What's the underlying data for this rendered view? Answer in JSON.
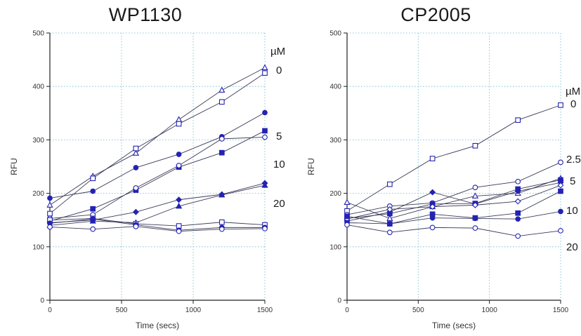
{
  "chart_data": [
    {
      "type": "line",
      "title": "WP1130",
      "xlabel": "Time (secs)",
      "ylabel": "RFU",
      "xlim": [
        0,
        1500
      ],
      "ylim": [
        0,
        500
      ],
      "xticks": [
        0,
        500,
        1000,
        1500
      ],
      "yticks": [
        0,
        100,
        200,
        300,
        400,
        500
      ],
      "grid": true,
      "x": [
        0,
        300,
        600,
        900,
        1200,
        1500
      ],
      "annotations": [
        "µM",
        "0",
        "5",
        "10",
        "20"
      ],
      "series": [
        {
          "marker": "triangle-open",
          "values": [
            178,
            232,
            275,
            338,
            393,
            435
          ]
        },
        {
          "marker": "square-open",
          "values": [
            162,
            228,
            284,
            330,
            371,
            425
          ]
        },
        {
          "marker": "circle-filled",
          "values": [
            191,
            204,
            248,
            273,
            306,
            351
          ]
        },
        {
          "marker": "square-filled",
          "values": [
            148,
            171,
            206,
            249,
            276,
            317
          ]
        },
        {
          "marker": "circle-open",
          "values": [
            153,
            160,
            210,
            252,
            302,
            305
          ]
        },
        {
          "marker": "diamond-filled",
          "values": [
            145,
            150,
            165,
            188,
            198,
            219
          ]
        },
        {
          "marker": "triangle-filled",
          "values": [
            140,
            148,
            145,
            176,
            197,
            215
          ]
        },
        {
          "marker": "square-open",
          "values": [
            150,
            153,
            143,
            139,
            146,
            141
          ]
        },
        {
          "marker": "circle-filled",
          "values": [
            144,
            152,
            141,
            131,
            136,
            136
          ]
        },
        {
          "marker": "circle-open",
          "values": [
            137,
            133,
            138,
            129,
            133,
            134
          ]
        }
      ]
    },
    {
      "type": "line",
      "title": "CP2005",
      "xlabel": "Time (secs)",
      "ylabel": "RFU",
      "xlim": [
        0,
        1500
      ],
      "ylim": [
        0,
        500
      ],
      "xticks": [
        0,
        500,
        1000,
        1500
      ],
      "yticks": [
        0,
        100,
        200,
        300,
        400,
        500
      ],
      "grid": true,
      "x": [
        0,
        300,
        600,
        900,
        1200,
        1500
      ],
      "annotations": [
        "µM",
        "0",
        "2.5",
        "5",
        "10",
        "20"
      ],
      "series": [
        {
          "marker": "square-open",
          "values": [
            167,
            217,
            265,
            289,
            337,
            365
          ]
        },
        {
          "marker": "circle-open",
          "values": [
            160,
            176,
            182,
            211,
            222,
            258
          ]
        },
        {
          "marker": "triangle-open",
          "values": [
            183,
            153,
            175,
            195,
            200,
            228
          ]
        },
        {
          "marker": "square-filled",
          "values": [
            153,
            162,
            180,
            181,
            208,
            225
          ]
        },
        {
          "marker": "diamond-filled",
          "values": [
            148,
            165,
            202,
            180,
            204,
            220
          ]
        },
        {
          "marker": "diamond-open",
          "values": [
            152,
            170,
            175,
            178,
            185,
            215
          ]
        },
        {
          "marker": "square-filled",
          "values": [
            157,
            143,
            161,
            154,
            163,
            204
          ]
        },
        {
          "marker": "circle-filled",
          "values": [
            145,
            143,
            154,
            153,
            152,
            166
          ]
        },
        {
          "marker": "circle-open",
          "values": [
            141,
            127,
            136,
            135,
            120,
            130
          ]
        }
      ]
    }
  ]
}
